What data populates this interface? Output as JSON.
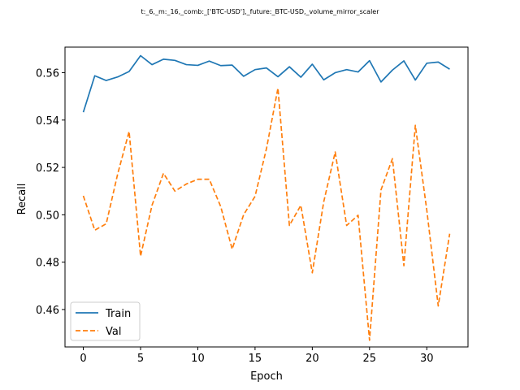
{
  "chart_data": {
    "type": "line",
    "title": "t:_6,_m:_16,_comb:_['BTC-USD'],_future:_BTC-USD,_volume_mirror_scaler",
    "xlabel": "Epoch",
    "ylabel": "Recall",
    "xlim": [
      -1.6,
      33.6
    ],
    "ylim": [
      0.4442,
      0.5708
    ],
    "xticks": [
      0,
      5,
      10,
      15,
      20,
      25,
      30
    ],
    "yticks": [
      0.46,
      0.48,
      0.5,
      0.52,
      0.54,
      0.56
    ],
    "ytick_labels": [
      "0.46",
      "0.48",
      "0.50",
      "0.52",
      "0.54",
      "0.56"
    ],
    "legend_position": "lower-left",
    "grid": false,
    "x": [
      0,
      1,
      2,
      3,
      4,
      5,
      6,
      7,
      8,
      9,
      10,
      11,
      12,
      13,
      14,
      15,
      16,
      17,
      18,
      19,
      20,
      21,
      22,
      23,
      24,
      25,
      26,
      27,
      28,
      29,
      30,
      31,
      32
    ],
    "series": [
      {
        "name": "Train",
        "color": "#1f77b4",
        "style": "solid",
        "values": [
          0.5433,
          0.5587,
          0.5567,
          0.5582,
          0.5605,
          0.5672,
          0.5634,
          0.5657,
          0.5652,
          0.5634,
          0.5631,
          0.5649,
          0.563,
          0.5632,
          0.5585,
          0.5613,
          0.562,
          0.5583,
          0.5625,
          0.5581,
          0.5636,
          0.557,
          0.56,
          0.5613,
          0.5603,
          0.5651,
          0.5561,
          0.5611,
          0.565,
          0.5569,
          0.564,
          0.5645,
          0.5615
        ]
      },
      {
        "name": "Val",
        "color": "#ff7f0e",
        "style": "dashed",
        "values": [
          0.508,
          0.4935,
          0.4962,
          0.5172,
          0.5352,
          0.4825,
          0.504,
          0.5175,
          0.51,
          0.513,
          0.515,
          0.515,
          0.5035,
          0.4855,
          0.5,
          0.5078,
          0.528,
          0.5535,
          0.4955,
          0.504,
          0.4755,
          0.5055,
          0.5265,
          0.4955,
          0.4998,
          0.447,
          0.5105,
          0.5237,
          0.4785,
          0.5378,
          0.502,
          0.4615,
          0.492
        ]
      }
    ]
  }
}
